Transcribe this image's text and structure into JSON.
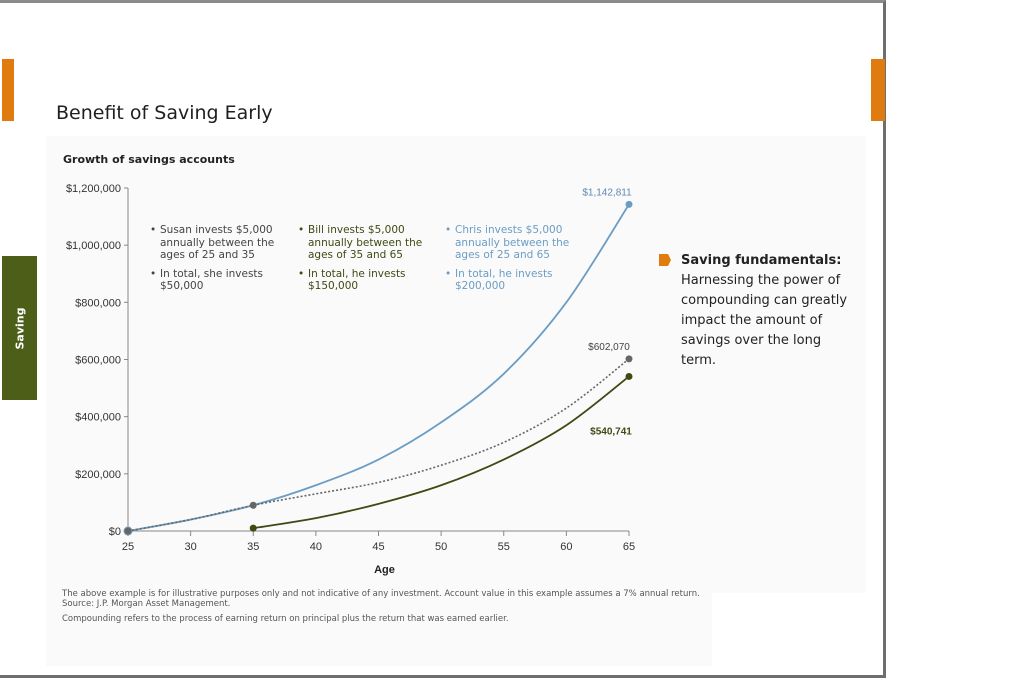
{
  "slide": {
    "title": "Benefit of Saving Early",
    "side_tab": "Saving"
  },
  "colors": {
    "accent": "#e07b10",
    "side_tab": "#4c5e18",
    "chris": "#6b9dc4",
    "susan": "#666666",
    "bill": "#3d4a12"
  },
  "annotations": {
    "susan": [
      "Susan invests $5,000 annually between the ages of 25 and 35",
      "In total, she invests $50,000"
    ],
    "bill": [
      "Bill invests $5,000 annually between the ages of 35 and 65",
      "In total, he invests $150,000"
    ],
    "chris": [
      "Chris invests $5,000 annually between the ages of 25 and 65",
      "In total, he invests $200,000"
    ]
  },
  "fundamentals": {
    "heading": "Saving fundamentals:",
    "body": "Harnessing the power of compounding can greatly impact the amount of savings over the long term."
  },
  "footnotes": {
    "line1": "The above example is for illustrative purposes only and not indicative of any investment. Account value in this example assumes a 7% annual return.",
    "line2": "Source: J.P. Morgan Asset Management.",
    "line3": "Compounding refers to the process of earning return on principal plus the return that was earned earlier."
  },
  "chart_data": {
    "type": "line",
    "title": "Growth of savings accounts",
    "xlabel": "Age",
    "ylabel": "",
    "xlim": [
      25,
      65
    ],
    "ylim": [
      0,
      1200000
    ],
    "x_ticks": [
      25,
      30,
      35,
      40,
      45,
      50,
      55,
      60,
      65
    ],
    "y_ticks": [
      0,
      200000,
      400000,
      600000,
      800000,
      1000000,
      1200000
    ],
    "y_tick_labels": [
      "$0",
      "$200,000",
      "$400,000",
      "$600,000",
      "$800,000",
      "$1,000,000",
      "$1,200,000"
    ],
    "grid": false,
    "series": [
      {
        "key": "chris",
        "color": "#6b9dc4",
        "style": "solid",
        "x": [
          25,
          30,
          35,
          40,
          45,
          50,
          55,
          60,
          65
        ],
        "y": [
          0,
          40000,
          90000,
          160000,
          250000,
          380000,
          550000,
          800000,
          1142811
        ],
        "end_label": "$1,142,811"
      },
      {
        "key": "susan",
        "color": "#666666",
        "style": "dotted",
        "x": [
          25,
          30,
          35,
          40,
          45,
          50,
          55,
          60,
          65
        ],
        "y": [
          0,
          40000,
          90000,
          130000,
          170000,
          230000,
          310000,
          430000,
          602070
        ],
        "end_label": "$602,070"
      },
      {
        "key": "bill",
        "color": "#3d4a12",
        "style": "solid",
        "x": [
          35,
          40,
          45,
          50,
          55,
          60,
          65
        ],
        "y": [
          10000,
          45000,
          95000,
          160000,
          250000,
          370000,
          540741
        ],
        "end_label": "$540,741"
      }
    ]
  }
}
